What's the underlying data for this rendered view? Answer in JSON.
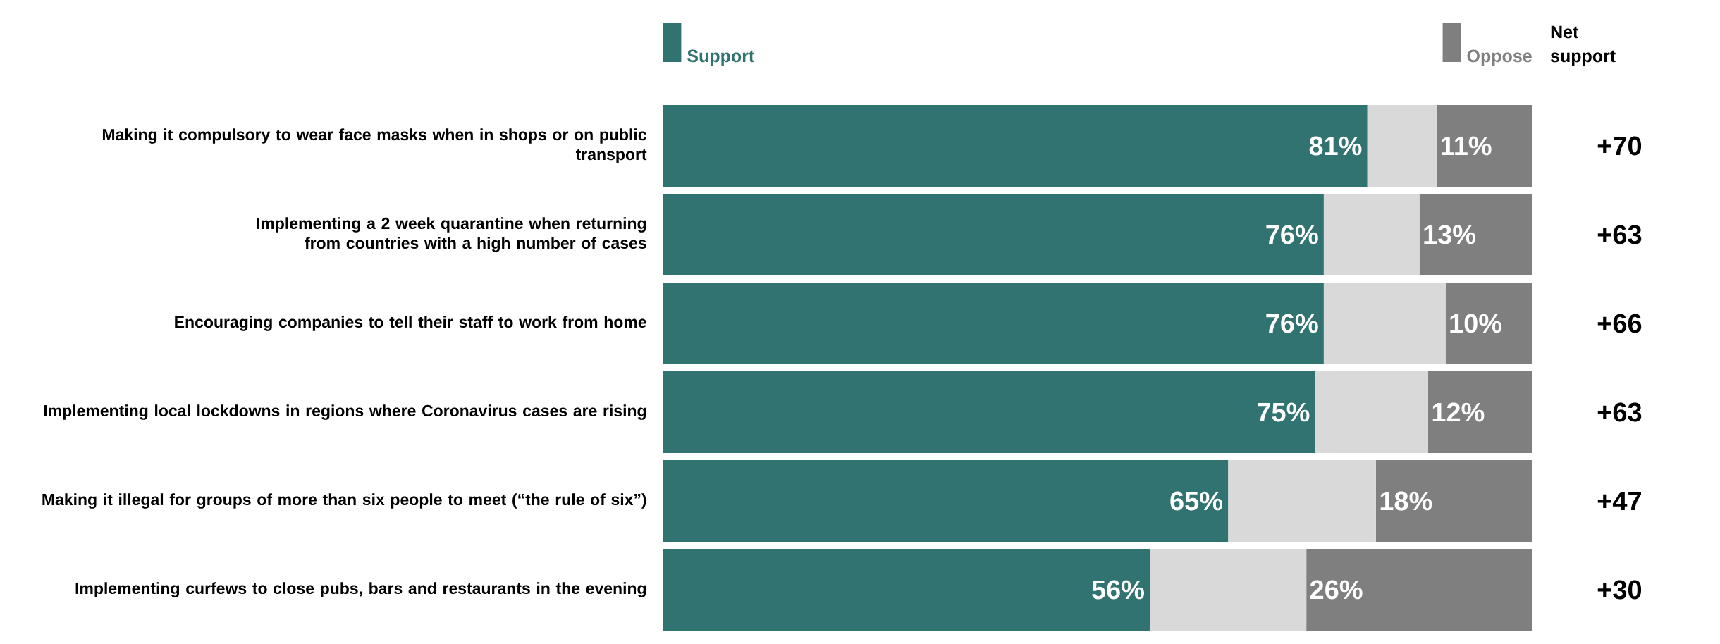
{
  "chart_data": {
    "type": "bar",
    "orientation": "horizontal",
    "stacked": true,
    "categories": [
      "Making it compulsory to wear face masks when in shops or on public transport",
      "Implementing a 2 week quarantine when returning from countries with a high number of cases",
      "Encouraging companies to tell their staff to work from home",
      "Implementing local lockdowns in regions where Coronavirus cases are rising",
      "Making it illegal for groups of more than six people to meet (“the rule of six”)",
      "Implementing curfews to close pubs, bars and restaurants in the evening"
    ],
    "series": [
      {
        "name": "Support",
        "color": "#307370",
        "values": [
          81,
          76,
          76,
          75,
          65,
          56
        ],
        "value_labels": [
          "81%",
          "76%",
          "76%",
          "75%",
          "65%",
          "56%"
        ]
      },
      {
        "color": "#d9d9d9",
        "values": [
          8,
          11,
          14,
          13,
          17,
          18
        ]
      },
      {
        "name": "Oppose",
        "color": "#7f7f7f",
        "values": [
          11,
          13,
          10,
          12,
          18,
          26
        ],
        "value_labels": [
          "11%",
          "13%",
          "10%",
          "12%",
          "18%",
          "26%"
        ]
      }
    ],
    "xlim": [
      0,
      100
    ],
    "tick_labels": "y",
    "legend": "top",
    "annotations": [
      "Net support",
      "+70",
      "+63",
      "+66",
      "+63",
      "+47",
      "+30"
    ]
  }
}
